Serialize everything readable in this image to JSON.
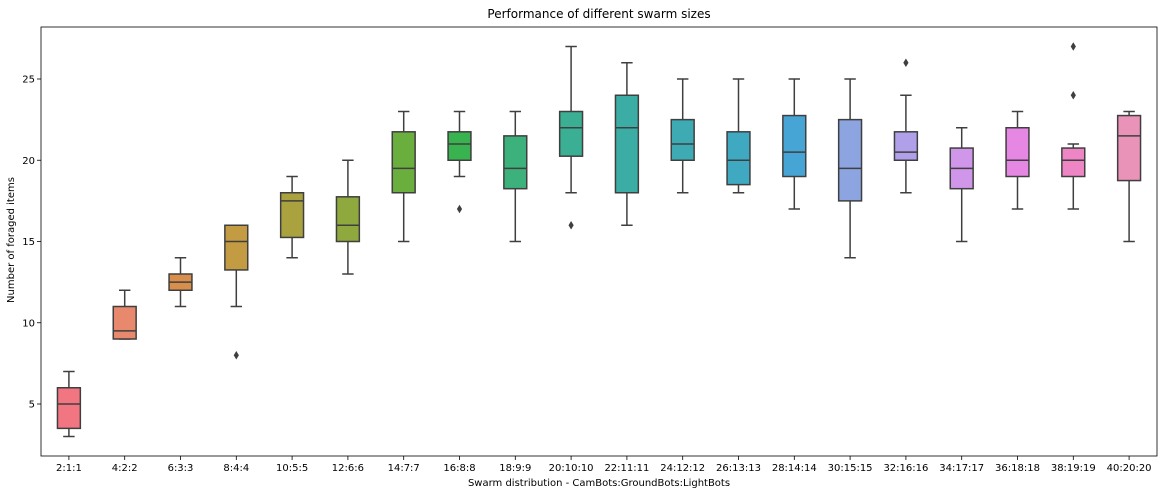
{
  "chart_data": {
    "type": "box",
    "title": "Performance of different swarm sizes",
    "xlabel": "Swarm distribution - CamBots:GroundBots:LightBots",
    "ylabel": "Number of foraged items",
    "ylim": [
      1.8,
      28.2
    ],
    "yticks": [
      5,
      10,
      15,
      20,
      25
    ],
    "grid": false,
    "categories": [
      "2:1:1",
      "4:2:2",
      "6:3:3",
      "8:4:4",
      "10:5:5",
      "12:6:6",
      "14:7:7",
      "16:8:8",
      "18:9:9",
      "20:10:10",
      "22:11:11",
      "24:12:12",
      "26:13:13",
      "28:14:14",
      "30:15:15",
      "32:16:16",
      "34:17:17",
      "36:18:18",
      "38:19:19",
      "40:20:20"
    ],
    "boxes": [
      {
        "whislo": 3,
        "q1": 3.5,
        "med": 5,
        "q3": 6,
        "whishi": 7,
        "fliers": [],
        "color": "#f27682"
      },
      {
        "whislo": 9,
        "q1": 9,
        "med": 9.5,
        "q3": 11,
        "whishi": 12,
        "fliers": [],
        "color": "#e8886c"
      },
      {
        "whislo": 11,
        "q1": 12,
        "med": 12.5,
        "q3": 13,
        "whishi": 14,
        "fliers": [],
        "color": "#d98f4c"
      },
      {
        "whislo": 11,
        "q1": 13.25,
        "med": 15,
        "q3": 16,
        "whishi": 16,
        "fliers": [
          8
        ],
        "color": "#c39b42"
      },
      {
        "whislo": 14,
        "q1": 15.25,
        "med": 17.5,
        "q3": 18,
        "whishi": 19,
        "fliers": [],
        "color": "#a9a23e"
      },
      {
        "whislo": 13,
        "q1": 15,
        "med": 16,
        "q3": 17.75,
        "whishi": 20,
        "fliers": [],
        "color": "#8fa93e"
      },
      {
        "whislo": 15,
        "q1": 18,
        "med": 19.5,
        "q3": 21.75,
        "whishi": 23,
        "fliers": [],
        "color": "#6aae3e"
      },
      {
        "whislo": 19,
        "q1": 20,
        "med": 21,
        "q3": 21.75,
        "whishi": 23,
        "fliers": [
          17
        ],
        "color": "#39b250"
      },
      {
        "whislo": 15,
        "q1": 18.25,
        "med": 19.5,
        "q3": 21.5,
        "whishi": 23,
        "fliers": [],
        "color": "#3db17b"
      },
      {
        "whislo": 18,
        "q1": 20.25,
        "med": 22,
        "q3": 23,
        "whishi": 27,
        "fliers": [
          16
        ],
        "color": "#3baf94"
      },
      {
        "whislo": 16,
        "q1": 18,
        "med": 22,
        "q3": 24,
        "whishi": 26,
        "fliers": [],
        "color": "#3cada5"
      },
      {
        "whislo": 18,
        "q1": 20,
        "med": 21,
        "q3": 22.5,
        "whishi": 25,
        "fliers": [],
        "color": "#3eabb4"
      },
      {
        "whislo": 18,
        "q1": 18.5,
        "med": 20,
        "q3": 21.75,
        "whishi": 25,
        "fliers": [],
        "color": "#3fa9c2"
      },
      {
        "whislo": 17,
        "q1": 19,
        "med": 20.5,
        "q3": 22.75,
        "whishi": 25,
        "fliers": [],
        "color": "#47a5d6"
      },
      {
        "whislo": 14,
        "q1": 17.5,
        "med": 19.5,
        "q3": 22.5,
        "whishi": 25,
        "fliers": [],
        "color": "#8ca4e0"
      },
      {
        "whislo": 18,
        "q1": 20,
        "med": 20.5,
        "q3": 21.75,
        "whishi": 24,
        "fliers": [
          26
        ],
        "color": "#b0a0ea"
      },
      {
        "whislo": 15,
        "q1": 18.25,
        "med": 19.5,
        "q3": 20.75,
        "whishi": 22,
        "fliers": [],
        "color": "#cf96ea"
      },
      {
        "whislo": 17,
        "q1": 19,
        "med": 20,
        "q3": 22,
        "whishi": 23,
        "fliers": [],
        "color": "#e587e3"
      },
      {
        "whislo": 17,
        "q1": 19,
        "med": 20,
        "q3": 20.75,
        "whishi": 21,
        "fliers": [
          24,
          27
        ],
        "color": "#ee86c6"
      },
      {
        "whislo": 15,
        "q1": 18.75,
        "med": 21.5,
        "q3": 22.75,
        "whishi": 23,
        "fliers": [],
        "color": "#e993b8"
      }
    ]
  }
}
